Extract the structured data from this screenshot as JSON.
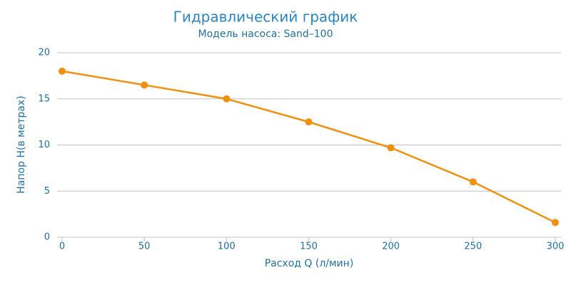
{
  "chart_data": {
    "type": "line",
    "title": "Гидравлический график",
    "subtitle": "Модель насоса: Sand–100",
    "x_label": "Расход Q (л/мин)",
    "y_label": "Напор Н(в метрах)",
    "x": [
      0,
      50,
      100,
      150,
      200,
      250,
      300
    ],
    "series": [
      {
        "color": "#f0900f",
        "values": [
          18,
          16.5,
          15,
          12.5,
          9.7,
          6,
          1.6
        ]
      }
    ],
    "xlim": [
      0,
      300
    ],
    "xticks": [
      0,
      50,
      100,
      150,
      200,
      250,
      300
    ],
    "ylim": [
      0,
      20
    ],
    "yticks": [
      0,
      5,
      10,
      15,
      20
    ],
    "grid": true
  }
}
